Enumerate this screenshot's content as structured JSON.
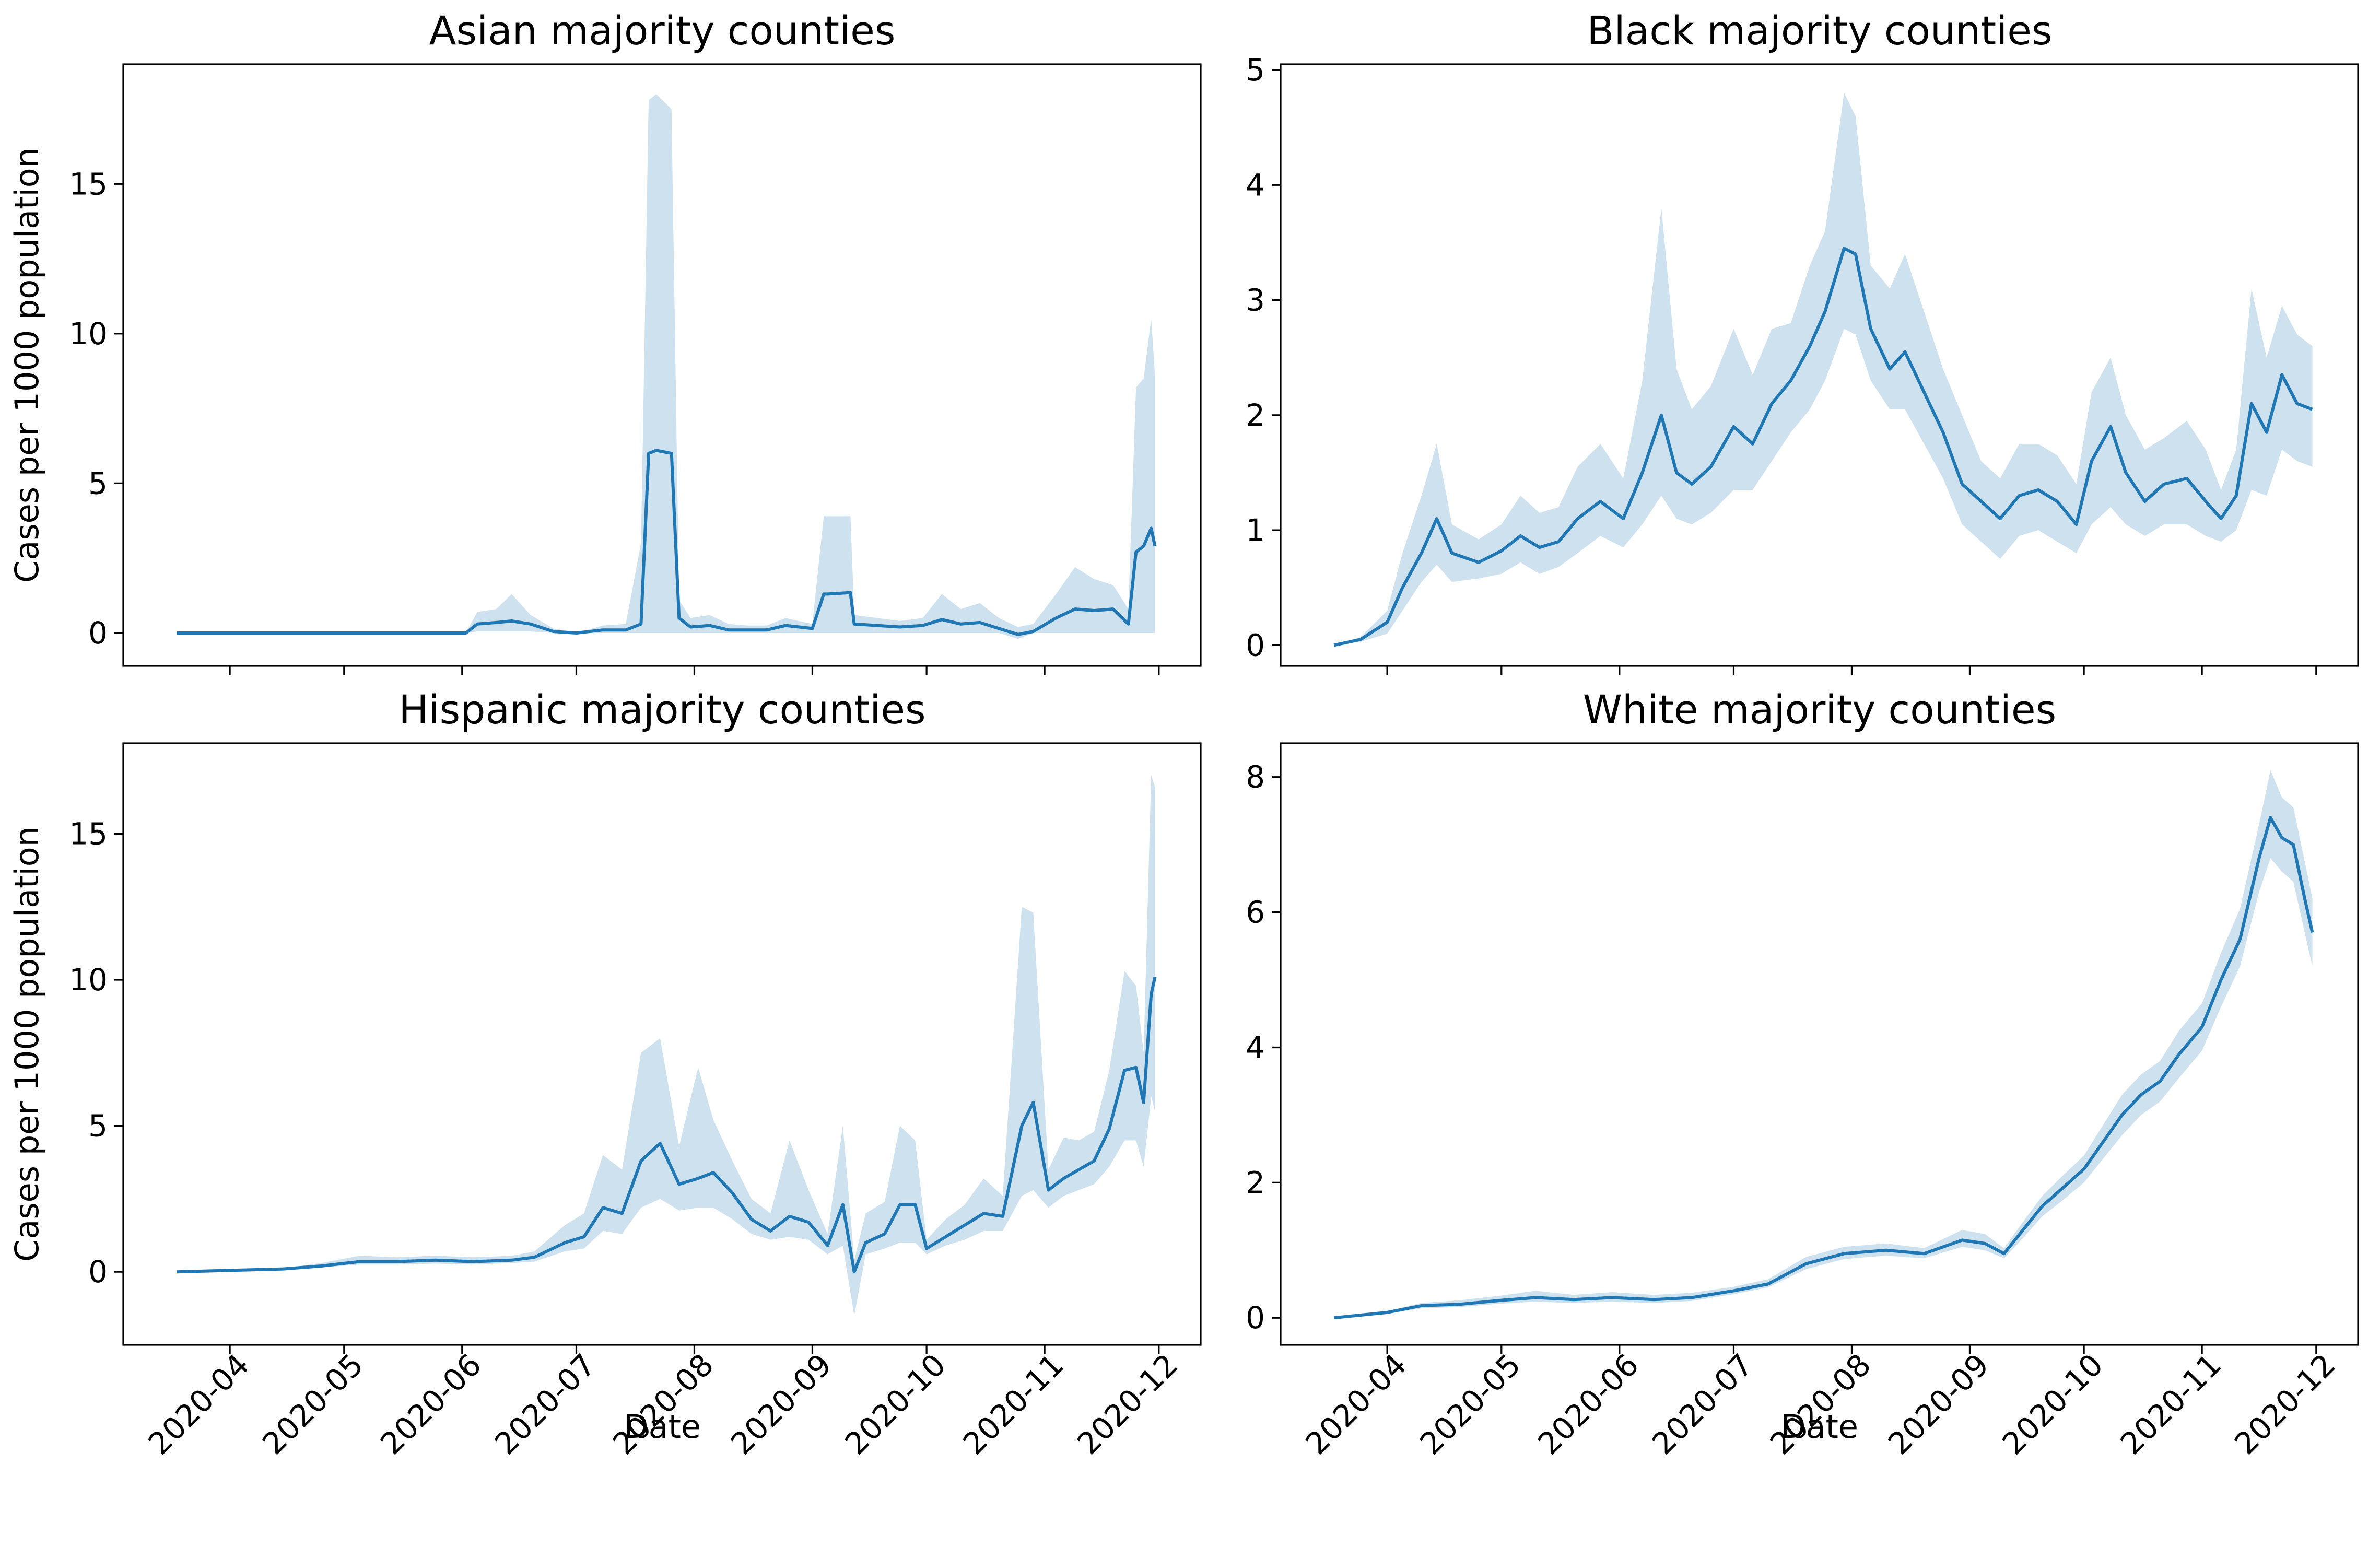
{
  "figure": {
    "series_color": "#1f77b4",
    "band_color": "#1f77b4"
  },
  "chart_data": [
    {
      "type": "line",
      "title": "Asian majority counties",
      "xlabel": "",
      "ylabel": "Cases per 1000 population",
      "ylim": [
        -1.1,
        19
      ],
      "xlim": [
        "2020-03-04",
        "2020-12-12"
      ],
      "yticks": [
        0,
        5,
        10,
        15
      ],
      "xticks": [
        "2020-04",
        "2020-05",
        "2020-06",
        "2020-07",
        "2020-08",
        "2020-09",
        "2020-10",
        "2020-11",
        "2020-12"
      ],
      "show_x_tick_labels": false,
      "grid": false,
      "series": [
        {
          "x": [
            "2020-03-18",
            "2020-06-02",
            "2020-06-05",
            "2020-06-10",
            "2020-06-14",
            "2020-06-19",
            "2020-06-25",
            "2020-07-01",
            "2020-07-08",
            "2020-07-14",
            "2020-07-18",
            "2020-07-20",
            "2020-07-22",
            "2020-07-26",
            "2020-07-28",
            "2020-07-31",
            "2020-08-05",
            "2020-08-10",
            "2020-08-15",
            "2020-08-20",
            "2020-08-25",
            "2020-09-01",
            "2020-09-04",
            "2020-09-05",
            "2020-09-11",
            "2020-09-12",
            "2020-09-18",
            "2020-09-24",
            "2020-09-30",
            "2020-10-05",
            "2020-10-10",
            "2020-10-15",
            "2020-10-20",
            "2020-10-25",
            "2020-10-29",
            "2020-11-04",
            "2020-11-09",
            "2020-11-14",
            "2020-11-19",
            "2020-11-23",
            "2020-11-25",
            "2020-11-27",
            "2020-11-29",
            "2020-11-30"
          ],
          "y": [
            0,
            0,
            0.3,
            0.35,
            0.4,
            0.3,
            0.05,
            0,
            0.1,
            0.1,
            0.3,
            6,
            6.1,
            6,
            0.5,
            0.2,
            0.25,
            0.1,
            0.1,
            0.1,
            0.25,
            0.15,
            1.3,
            1.3,
            1.35,
            0.3,
            0.25,
            0.2,
            0.25,
            0.45,
            0.3,
            0.35,
            0.15,
            -0.05,
            0.05,
            0.5,
            0.8,
            0.75,
            0.8,
            0.3,
            2.7,
            2.9,
            3.5,
            2.9
          ],
          "ci_low": [
            0,
            0,
            0.05,
            0.05,
            0.05,
            0.05,
            0,
            0,
            0,
            0,
            0,
            0,
            0,
            0,
            0,
            0,
            0,
            0,
            0,
            0,
            0,
            0,
            0,
            0,
            0,
            0,
            0,
            0,
            0,
            0,
            0,
            0,
            0,
            -0.2,
            0,
            0,
            0,
            0,
            0,
            0,
            0,
            0,
            0,
            0
          ],
          "ci_high": [
            0,
            0,
            0.7,
            0.8,
            1.3,
            0.6,
            0.15,
            0,
            0.25,
            0.3,
            3,
            17.8,
            18,
            17.5,
            1.1,
            0.5,
            0.6,
            0.3,
            0.25,
            0.25,
            0.5,
            0.3,
            3.9,
            3.9,
            3.9,
            0.6,
            0.5,
            0.4,
            0.5,
            1.3,
            0.8,
            1,
            0.5,
            0.2,
            0.3,
            1.3,
            2.2,
            1.8,
            1.6,
            0.8,
            8.2,
            8.5,
            10.5,
            8.6
          ]
        }
      ]
    },
    {
      "type": "line",
      "title": "Black majority counties",
      "xlabel": "",
      "ylabel": "",
      "ylim": [
        -0.18,
        5.05
      ],
      "xlim": [
        "2020-03-04",
        "2020-12-12"
      ],
      "yticks": [
        0,
        1,
        2,
        3,
        4,
        5
      ],
      "xticks": [
        "2020-04",
        "2020-05",
        "2020-06",
        "2020-07",
        "2020-08",
        "2020-09",
        "2020-10",
        "2020-11",
        "2020-12"
      ],
      "show_x_tick_labels": false,
      "grid": false,
      "series": [
        {
          "x": [
            "2020-03-18",
            "2020-03-25",
            "2020-04-01",
            "2020-04-05",
            "2020-04-10",
            "2020-04-14",
            "2020-04-18",
            "2020-04-25",
            "2020-05-01",
            "2020-05-06",
            "2020-05-11",
            "2020-05-16",
            "2020-05-21",
            "2020-05-27",
            "2020-06-02",
            "2020-06-07",
            "2020-06-12",
            "2020-06-16",
            "2020-06-20",
            "2020-06-25",
            "2020-07-01",
            "2020-07-06",
            "2020-07-11",
            "2020-07-16",
            "2020-07-21",
            "2020-07-25",
            "2020-07-30",
            "2020-08-02",
            "2020-08-06",
            "2020-08-11",
            "2020-08-15",
            "2020-08-20",
            "2020-08-25",
            "2020-08-30",
            "2020-09-04",
            "2020-09-09",
            "2020-09-14",
            "2020-09-19",
            "2020-09-24",
            "2020-09-29",
            "2020-10-03",
            "2020-10-08",
            "2020-10-12",
            "2020-10-17",
            "2020-10-22",
            "2020-10-28",
            "2020-11-02",
            "2020-11-06",
            "2020-11-10",
            "2020-11-14",
            "2020-11-18",
            "2020-11-22",
            "2020-11-26",
            "2020-11-30"
          ],
          "y": [
            0,
            0.05,
            0.2,
            0.5,
            0.8,
            1.1,
            0.8,
            0.72,
            0.82,
            0.95,
            0.85,
            0.9,
            1.1,
            1.25,
            1.1,
            1.5,
            2,
            1.5,
            1.4,
            1.55,
            1.9,
            1.75,
            2.1,
            2.3,
            2.6,
            2.9,
            3.45,
            3.4,
            2.75,
            2.4,
            2.55,
            2.2,
            1.85,
            1.4,
            1.25,
            1.1,
            1.3,
            1.35,
            1.25,
            1.05,
            1.6,
            1.9,
            1.5,
            1.25,
            1.4,
            1.45,
            1.25,
            1.1,
            1.3,
            2.1,
            1.85,
            2.35,
            2.1,
            2.05
          ],
          "ci_low": [
            0,
            0.03,
            0.1,
            0.3,
            0.55,
            0.7,
            0.55,
            0.58,
            0.62,
            0.72,
            0.62,
            0.68,
            0.8,
            0.95,
            0.85,
            1.05,
            1.3,
            1.1,
            1.05,
            1.15,
            1.35,
            1.35,
            1.6,
            1.85,
            2.05,
            2.3,
            2.75,
            2.7,
            2.3,
            2.05,
            2.05,
            1.75,
            1.45,
            1.05,
            0.9,
            0.75,
            0.95,
            1,
            0.9,
            0.8,
            1.05,
            1.2,
            1.05,
            0.95,
            1.05,
            1.05,
            0.95,
            0.9,
            1,
            1.35,
            1.3,
            1.7,
            1.6,
            1.55
          ],
          "ci_high": [
            0,
            0.07,
            0.3,
            0.8,
            1.3,
            1.75,
            1.05,
            0.92,
            1.05,
            1.3,
            1.15,
            1.2,
            1.55,
            1.75,
            1.45,
            2.3,
            3.8,
            2.4,
            2.05,
            2.25,
            2.75,
            2.35,
            2.75,
            2.8,
            3.3,
            3.6,
            4.8,
            4.6,
            3.3,
            3.1,
            3.4,
            2.9,
            2.4,
            2,
            1.6,
            1.45,
            1.75,
            1.75,
            1.65,
            1.4,
            2.2,
            2.5,
            2,
            1.7,
            1.8,
            1.95,
            1.7,
            1.35,
            1.7,
            3.1,
            2.5,
            2.95,
            2.7,
            2.6
          ]
        }
      ]
    },
    {
      "type": "line",
      "title": "Hispanic majority counties",
      "xlabel": "Date",
      "ylabel": "Cases per 1000 population",
      "ylim": [
        -2.5,
        18.1
      ],
      "xlim": [
        "2020-03-04",
        "2020-12-12"
      ],
      "yticks": [
        0,
        5,
        10,
        15
      ],
      "xticks": [
        "2020-04",
        "2020-05",
        "2020-06",
        "2020-07",
        "2020-08",
        "2020-09",
        "2020-10",
        "2020-11",
        "2020-12"
      ],
      "show_x_tick_labels": true,
      "grid": false,
      "series": [
        {
          "x": [
            "2020-03-18",
            "2020-04-01",
            "2020-04-15",
            "2020-04-25",
            "2020-05-05",
            "2020-05-15",
            "2020-05-25",
            "2020-06-04",
            "2020-06-14",
            "2020-06-20",
            "2020-06-28",
            "2020-07-03",
            "2020-07-08",
            "2020-07-13",
            "2020-07-18",
            "2020-07-23",
            "2020-07-28",
            "2020-08-02",
            "2020-08-06",
            "2020-08-11",
            "2020-08-16",
            "2020-08-21",
            "2020-08-26",
            "2020-08-31",
            "2020-09-05",
            "2020-09-09",
            "2020-09-12",
            "2020-09-15",
            "2020-09-20",
            "2020-09-24",
            "2020-09-28",
            "2020-10-01",
            "2020-10-06",
            "2020-10-11",
            "2020-10-16",
            "2020-10-21",
            "2020-10-26",
            "2020-10-29",
            "2020-11-02",
            "2020-11-06",
            "2020-11-10",
            "2020-11-14",
            "2020-11-18",
            "2020-11-22",
            "2020-11-25",
            "2020-11-27",
            "2020-11-29",
            "2020-11-30"
          ],
          "y": [
            0,
            0.05,
            0.1,
            0.2,
            0.35,
            0.35,
            0.4,
            0.35,
            0.4,
            0.5,
            1,
            1.2,
            2.2,
            2,
            3.8,
            4.4,
            3,
            3.2,
            3.4,
            2.7,
            1.8,
            1.4,
            1.9,
            1.7,
            0.9,
            2.3,
            0,
            1,
            1.3,
            2.3,
            2.3,
            0.8,
            1.2,
            1.6,
            2,
            1.9,
            5,
            5.8,
            2.8,
            3.2,
            3.5,
            3.8,
            4.9,
            6.9,
            7,
            5.8,
            9.5,
            10.1
          ],
          "ci_low": [
            0,
            0.03,
            0.08,
            0.15,
            0.25,
            0.25,
            0.28,
            0.25,
            0.3,
            0.35,
            0.7,
            0.8,
            1.4,
            1.3,
            2.2,
            2.5,
            2.1,
            2.2,
            2.2,
            1.8,
            1.3,
            1.1,
            1.2,
            1.1,
            0.6,
            0.9,
            -1.5,
            0.6,
            0.8,
            1,
            1,
            0.6,
            0.9,
            1.1,
            1.4,
            1.4,
            2.6,
            2.8,
            2.2,
            2.6,
            2.8,
            3,
            3.6,
            4.5,
            4.5,
            3.6,
            6,
            5.5
          ],
          "ci_high": [
            0,
            0.07,
            0.12,
            0.3,
            0.55,
            0.5,
            0.55,
            0.5,
            0.55,
            0.7,
            1.6,
            2,
            4,
            3.5,
            7.5,
            8,
            4.3,
            7,
            5.2,
            3.8,
            2.5,
            2,
            4.5,
            2.8,
            1.3,
            5,
            0.4,
            2,
            2.4,
            5,
            4.5,
            1.1,
            1.8,
            2.3,
            3.2,
            2.6,
            12.5,
            12.3,
            3.5,
            4.6,
            4.5,
            4.8,
            6.9,
            10.3,
            9.8,
            7.5,
            17,
            16.6
          ]
        }
      ]
    },
    {
      "type": "line",
      "title": "White majority counties",
      "xlabel": "Date",
      "ylabel": "",
      "ylim": [
        -0.4,
        8.5
      ],
      "xlim": [
        "2020-03-04",
        "2020-12-12"
      ],
      "yticks": [
        0,
        2,
        4,
        6,
        8
      ],
      "xticks": [
        "2020-04",
        "2020-05",
        "2020-06",
        "2020-07",
        "2020-08",
        "2020-09",
        "2020-10",
        "2020-11",
        "2020-12"
      ],
      "show_x_tick_labels": true,
      "grid": false,
      "series": [
        {
          "x": [
            "2020-03-18",
            "2020-04-01",
            "2020-04-10",
            "2020-04-20",
            "2020-05-01",
            "2020-05-10",
            "2020-05-20",
            "2020-05-30",
            "2020-06-10",
            "2020-06-20",
            "2020-07-01",
            "2020-07-10",
            "2020-07-20",
            "2020-07-30",
            "2020-08-10",
            "2020-08-20",
            "2020-08-30",
            "2020-09-05",
            "2020-09-10",
            "2020-09-15",
            "2020-09-20",
            "2020-09-25",
            "2020-10-01",
            "2020-10-06",
            "2020-10-11",
            "2020-10-16",
            "2020-10-21",
            "2020-10-26",
            "2020-11-01",
            "2020-11-06",
            "2020-11-11",
            "2020-11-16",
            "2020-11-19",
            "2020-11-22",
            "2020-11-25",
            "2020-11-28",
            "2020-11-30"
          ],
          "y": [
            0,
            0.08,
            0.18,
            0.2,
            0.26,
            0.3,
            0.27,
            0.3,
            0.27,
            0.3,
            0.4,
            0.5,
            0.8,
            0.95,
            1.0,
            0.95,
            1.15,
            1.1,
            0.95,
            1.3,
            1.65,
            1.9,
            2.2,
            2.6,
            3.0,
            3.3,
            3.5,
            3.9,
            4.3,
            5.0,
            5.6,
            6.8,
            7.4,
            7.1,
            7.0,
            6.2,
            5.7
          ],
          "ci_low": [
            0,
            0.06,
            0.14,
            0.16,
            0.21,
            0.24,
            0.22,
            0.24,
            0.22,
            0.25,
            0.35,
            0.45,
            0.72,
            0.87,
            0.92,
            0.88,
            1.05,
            1.0,
            0.88,
            1.18,
            1.5,
            1.72,
            2.0,
            2.35,
            2.7,
            3.0,
            3.2,
            3.55,
            3.95,
            4.6,
            5.2,
            6.3,
            6.8,
            6.6,
            6.45,
            5.7,
            5.2
          ],
          "ci_high": [
            0,
            0.1,
            0.22,
            0.26,
            0.33,
            0.4,
            0.34,
            0.38,
            0.34,
            0.37,
            0.46,
            0.57,
            0.9,
            1.05,
            1.1,
            1.03,
            1.3,
            1.24,
            1.03,
            1.42,
            1.8,
            2.08,
            2.4,
            2.85,
            3.3,
            3.6,
            3.8,
            4.25,
            4.65,
            5.4,
            6.05,
            7.3,
            8.1,
            7.7,
            7.55,
            6.75,
            6.2
          ]
        }
      ]
    }
  ]
}
